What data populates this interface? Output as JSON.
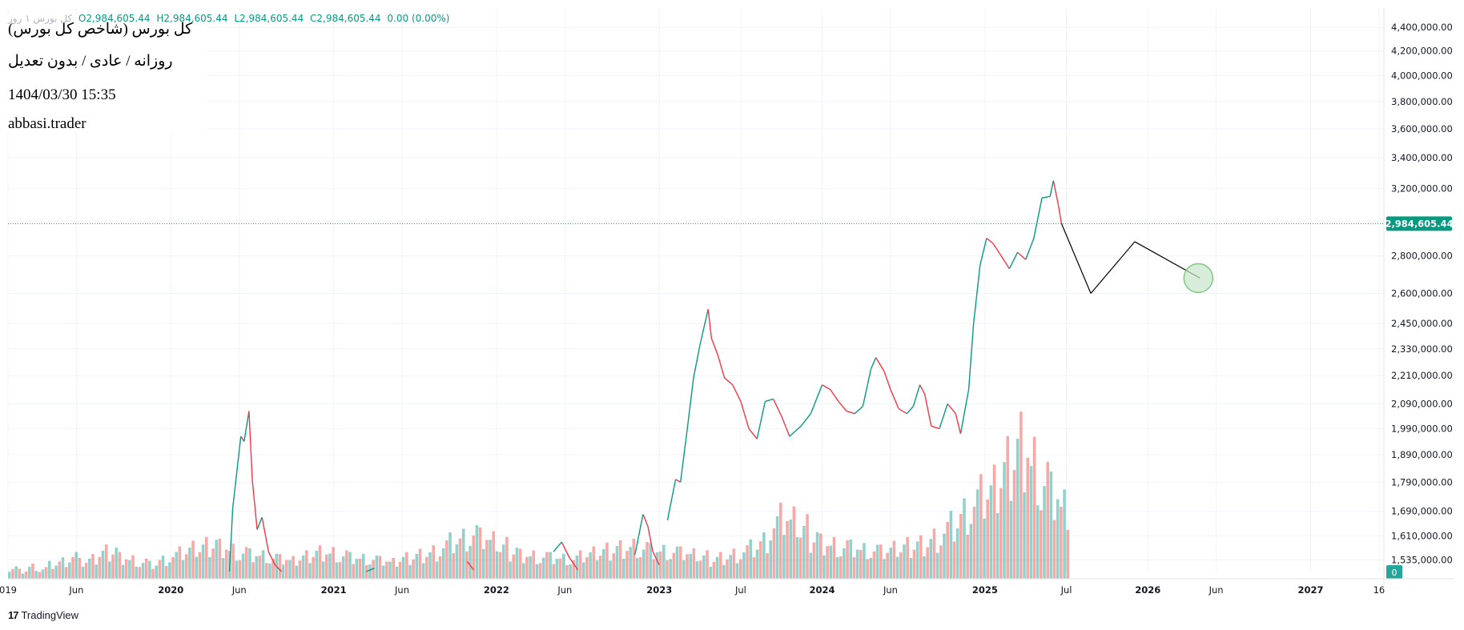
{
  "legend": {
    "symbol_faint": "کل بورس ۱ روز",
    "open": "O2,984,605.44",
    "high": "H2,984,605.44",
    "low": "L2,984,605.44",
    "close": "C2,984,605.44",
    "change": "0.00 (0.00%)"
  },
  "info": {
    "title": "کل بورس (شاخص کل بورس)",
    "mode": "روزانه / عادی / بدون تعدیل",
    "datetime": "1404/03/30 15:35",
    "author": "abbasi.trader"
  },
  "watermark": {
    "logo": "17",
    "name": "TradingView"
  },
  "chart_data": {
    "type": "line",
    "y_scale": "log",
    "ylim": [
      1500000,
      4500000
    ],
    "y_ticks": [
      1535000,
      1610000,
      1690000,
      1790000,
      1890000,
      1990000,
      2090000,
      2210000,
      2330000,
      2450000,
      2600000,
      2800000,
      3000000,
      3200000,
      3400000,
      3600000,
      3800000,
      4000000,
      4200000,
      4400000
    ],
    "y_tick_labels": [
      "1,535,000.00",
      "1,610,000.00",
      "1,690,000.00",
      "1,790,000.00",
      "1,890,000.00",
      "1,990,000.00",
      "2,090,000.00",
      "2,210,000.00",
      "2,330,000.00",
      "2,450,000.00",
      "2,600,000.00",
      "2,800,000.00",
      "3,000,000.00",
      "3,200,000.00",
      "3,400,000.00",
      "3,600,000.00",
      "3,800,000.00",
      "4,000,000.00",
      "4,200,000.00",
      "4,400,000.00"
    ],
    "x_ticks": [
      {
        "label": "019",
        "t": 2019.0,
        "bold": false
      },
      {
        "label": "Jun",
        "t": 2019.42,
        "bold": false
      },
      {
        "label": "2020",
        "t": 2020.0,
        "bold": true
      },
      {
        "label": "Jun",
        "t": 2020.42,
        "bold": false
      },
      {
        "label": "2021",
        "t": 2021.0,
        "bold": true
      },
      {
        "label": "Jun",
        "t": 2021.42,
        "bold": false
      },
      {
        "label": "2022",
        "t": 2022.0,
        "bold": true
      },
      {
        "label": "Jun",
        "t": 2022.42,
        "bold": false
      },
      {
        "label": "2023",
        "t": 2023.0,
        "bold": true
      },
      {
        "label": "Jul",
        "t": 2023.5,
        "bold": false
      },
      {
        "label": "2024",
        "t": 2024.0,
        "bold": true
      },
      {
        "label": "Jun",
        "t": 2024.42,
        "bold": false
      },
      {
        "label": "2025",
        "t": 2025.0,
        "bold": true
      },
      {
        "label": "Jul",
        "t": 2025.5,
        "bold": false
      },
      {
        "label": "2026",
        "t": 2026.0,
        "bold": true
      },
      {
        "label": "Jun",
        "t": 2026.42,
        "bold": false
      },
      {
        "label": "2027",
        "t": 2027.0,
        "bold": true
      },
      {
        "label": "16",
        "t": 2027.42,
        "bold": false
      }
    ],
    "last_price": 2984605.44,
    "last_price_label": "2,984,605.44",
    "volume_label": "0",
    "price_series": [
      {
        "t": 2020.36,
        "v": 1500000
      },
      {
        "t": 2020.38,
        "v": 1700000
      },
      {
        "t": 2020.4,
        "v": 1800000
      },
      {
        "t": 2020.43,
        "v": 1960000
      },
      {
        "t": 2020.45,
        "v": 1940000
      },
      {
        "t": 2020.48,
        "v": 2060000
      },
      {
        "t": 2020.5,
        "v": 1800000
      },
      {
        "t": 2020.53,
        "v": 1630000
      },
      {
        "t": 2020.56,
        "v": 1670000
      },
      {
        "t": 2020.6,
        "v": 1560000
      },
      {
        "t": 2020.64,
        "v": 1520000
      },
      {
        "t": 2020.68,
        "v": 1500000
      },
      null,
      {
        "t": 2021.2,
        "v": 1500000
      },
      {
        "t": 2021.25,
        "v": 1510000
      },
      null,
      {
        "t": 2021.82,
        "v": 1530000
      },
      {
        "t": 2021.86,
        "v": 1505000
      },
      null,
      {
        "t": 2022.35,
        "v": 1560000
      },
      {
        "t": 2022.4,
        "v": 1590000
      },
      {
        "t": 2022.45,
        "v": 1540000
      },
      {
        "t": 2022.5,
        "v": 1505000
      },
      null,
      {
        "t": 2022.85,
        "v": 1550000
      },
      {
        "t": 2022.9,
        "v": 1680000
      },
      {
        "t": 2022.93,
        "v": 1640000
      },
      {
        "t": 2022.96,
        "v": 1560000
      },
      {
        "t": 2023.0,
        "v": 1520000
      },
      null,
      {
        "t": 2023.05,
        "v": 1660000
      },
      {
        "t": 2023.1,
        "v": 1800000
      },
      {
        "t": 2023.13,
        "v": 1790000
      },
      {
        "t": 2023.17,
        "v": 1980000
      },
      {
        "t": 2023.21,
        "v": 2200000
      },
      {
        "t": 2023.25,
        "v": 2350000
      },
      {
        "t": 2023.3,
        "v": 2520000
      },
      {
        "t": 2023.32,
        "v": 2380000
      },
      {
        "t": 2023.36,
        "v": 2300000
      },
      {
        "t": 2023.4,
        "v": 2200000
      },
      {
        "t": 2023.45,
        "v": 2170000
      },
      {
        "t": 2023.5,
        "v": 2100000
      },
      {
        "t": 2023.55,
        "v": 1990000
      },
      {
        "t": 2023.6,
        "v": 1950000
      },
      {
        "t": 2023.65,
        "v": 2100000
      },
      {
        "t": 2023.7,
        "v": 2110000
      },
      {
        "t": 2023.75,
        "v": 2040000
      },
      {
        "t": 2023.8,
        "v": 1960000
      },
      {
        "t": 2023.87,
        "v": 2000000
      },
      {
        "t": 2023.93,
        "v": 2050000
      },
      {
        "t": 2024.0,
        "v": 2170000
      },
      {
        "t": 2024.05,
        "v": 2150000
      },
      {
        "t": 2024.1,
        "v": 2100000
      },
      {
        "t": 2024.15,
        "v": 2060000
      },
      {
        "t": 2024.2,
        "v": 2050000
      },
      {
        "t": 2024.25,
        "v": 2080000
      },
      {
        "t": 2024.3,
        "v": 2240000
      },
      {
        "t": 2024.33,
        "v": 2290000
      },
      {
        "t": 2024.38,
        "v": 2230000
      },
      {
        "t": 2024.42,
        "v": 2150000
      },
      {
        "t": 2024.47,
        "v": 2070000
      },
      {
        "t": 2024.52,
        "v": 2050000
      },
      {
        "t": 2024.56,
        "v": 2080000
      },
      {
        "t": 2024.6,
        "v": 2170000
      },
      {
        "t": 2024.63,
        "v": 2130000
      },
      {
        "t": 2024.67,
        "v": 2000000
      },
      {
        "t": 2024.72,
        "v": 1990000
      },
      {
        "t": 2024.77,
        "v": 2090000
      },
      {
        "t": 2024.82,
        "v": 2050000
      },
      {
        "t": 2024.85,
        "v": 1970000
      },
      {
        "t": 2024.9,
        "v": 2150000
      },
      {
        "t": 2024.93,
        "v": 2450000
      },
      {
        "t": 2024.97,
        "v": 2750000
      },
      {
        "t": 2025.01,
        "v": 2900000
      },
      {
        "t": 2025.05,
        "v": 2870000
      },
      {
        "t": 2025.1,
        "v": 2800000
      },
      {
        "t": 2025.15,
        "v": 2730000
      },
      {
        "t": 2025.2,
        "v": 2820000
      },
      {
        "t": 2025.25,
        "v": 2780000
      },
      {
        "t": 2025.3,
        "v": 2900000
      },
      {
        "t": 2025.35,
        "v": 3140000
      },
      {
        "t": 2025.4,
        "v": 3150000
      },
      {
        "t": 2025.42,
        "v": 3250000
      },
      {
        "t": 2025.45,
        "v": 3100000
      },
      {
        "t": 2025.47,
        "v": 2984605
      }
    ],
    "volume_series_fraction": [
      0.08,
      0.06,
      0.09,
      0.07,
      0.1,
      0.12,
      0.15,
      0.11,
      0.13,
      0.18,
      0.2,
      0.16,
      0.14,
      0.12,
      0.1,
      0.13,
      0.15,
      0.17,
      0.2,
      0.22,
      0.25,
      0.24,
      0.21,
      0.19,
      0.17,
      0.16,
      0.14,
      0.13,
      0.12,
      0.15,
      0.18,
      0.2,
      0.19,
      0.17,
      0.15,
      0.14,
      0.13,
      0.12,
      0.11,
      0.14,
      0.16,
      0.18,
      0.2,
      0.23,
      0.26,
      0.28,
      0.3,
      0.27,
      0.25,
      0.22,
      0.2,
      0.18,
      0.17,
      0.16,
      0.15,
      0.14,
      0.13,
      0.15,
      0.17,
      0.19,
      0.21,
      0.23,
      0.24,
      0.22,
      0.2,
      0.19,
      0.18,
      0.17,
      0.16,
      0.15,
      0.14,
      0.16,
      0.18,
      0.2,
      0.22,
      0.26,
      0.35,
      0.4,
      0.38,
      0.34,
      0.3,
      0.27,
      0.25,
      0.23,
      0.22,
      0.2,
      0.19,
      0.18,
      0.2,
      0.22,
      0.24,
      0.26,
      0.3,
      0.34,
      0.38,
      0.45,
      0.5,
      0.55,
      0.6,
      0.75,
      0.9,
      1.0,
      0.85,
      0.7,
      0.6,
      0.5
    ],
    "projection": [
      {
        "t": 2025.47,
        "v": 2984605
      },
      {
        "t": 2025.65,
        "v": 2600000
      },
      {
        "t": 2025.92,
        "v": 2880000
      },
      {
        "t": 2026.32,
        "v": 2680000
      }
    ],
    "target_marker": {
      "t": 2026.32,
      "v": 2680000
    }
  },
  "colors": {
    "up": "#26a69a",
    "down": "#ef5350",
    "line_up": "#089981",
    "line_down": "#f23645",
    "price_tag": "#089981",
    "grid": "#f0f3fa",
    "axis_text": "#131722",
    "projection": "#000000",
    "marker_fill": "#c8e6c9",
    "marker_stroke": "#81c784"
  }
}
